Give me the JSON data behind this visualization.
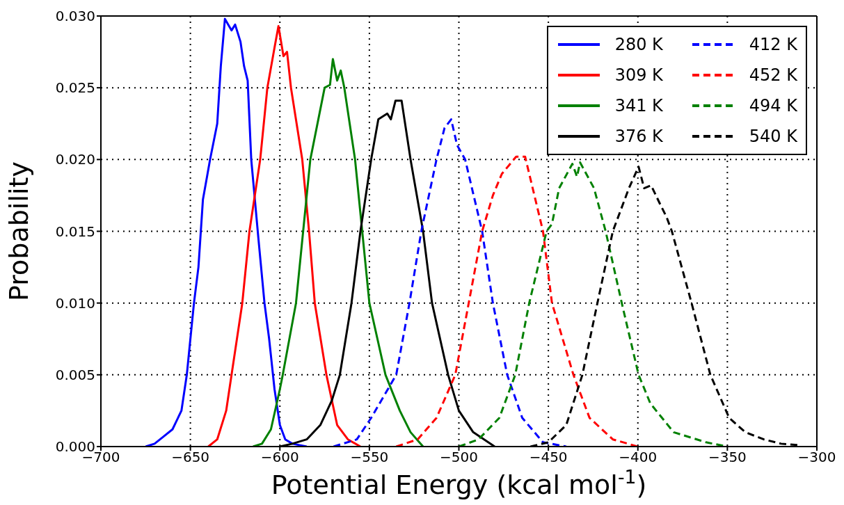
{
  "chart_data": {
    "type": "line",
    "xlabel": "Potential Energy (kcal mol$^{-1}$)",
    "ylabel": "Probability",
    "xlim": [
      -700,
      -300
    ],
    "xticks": [
      {
        "value": -700,
        "label": "−700"
      },
      {
        "value": -650,
        "label": "−650"
      },
      {
        "value": -600,
        "label": "−600"
      },
      {
        "value": -550,
        "label": "−550"
      },
      {
        "value": -500,
        "label": "−500"
      },
      {
        "value": -450,
        "label": "−450"
      },
      {
        "value": -400,
        "label": "−400"
      },
      {
        "value": -350,
        "label": "−350"
      },
      {
        "value": -300,
        "label": "−300"
      }
    ],
    "ylim": [
      0,
      0.03
    ],
    "yticks": [
      {
        "value": 0,
        "label": "0.000"
      },
      {
        "value": 0.005,
        "label": "0.005"
      },
      {
        "value": 0.01,
        "label": "0.010"
      },
      {
        "value": 0.015,
        "label": "0.015"
      },
      {
        "value": 0.02,
        "label": "0.020"
      },
      {
        "value": 0.025,
        "label": "0.025"
      },
      {
        "value": 0.03,
        "label": "0.030"
      }
    ],
    "grid": true,
    "legend": "top right",
    "marker": "none",
    "series": [
      {
        "name": "280 K",
        "color": "#0000ff",
        "line_style": "solid",
        "x": [
          -675,
          -670,
          -665,
          -660,
          -655,
          -652,
          -648,
          -645.5,
          -643,
          -639,
          -635,
          -633,
          -630.7,
          -627,
          -625,
          -622,
          -620,
          -618,
          -616,
          -612,
          -608.6,
          -606,
          -603,
          -600,
          -597,
          -593,
          -585
        ],
        "values": [
          0,
          0.0002,
          0.0007,
          0.0012,
          0.0025,
          0.005,
          0.01,
          0.0125,
          0.0172,
          0.02,
          0.0225,
          0.0265,
          0.0298,
          0.029,
          0.0294,
          0.0282,
          0.0265,
          0.0255,
          0.02,
          0.0145,
          0.01,
          0.0075,
          0.004,
          0.0015,
          0.0005,
          0.0002,
          0
        ]
      },
      {
        "name": "309 K",
        "color": "#ff0000",
        "line_style": "solid",
        "x": [
          -640,
          -635,
          -630,
          -627,
          -621,
          -617,
          -611,
          -607,
          -603,
          -600.8,
          -598,
          -596,
          -593.8,
          -587.5,
          -583.7,
          -580.5,
          -574,
          -568,
          -562,
          -555
        ],
        "values": [
          0,
          0.0005,
          0.0025,
          0.005,
          0.01,
          0.015,
          0.02,
          0.025,
          0.0278,
          0.0293,
          0.0272,
          0.0275,
          0.025,
          0.02,
          0.015,
          0.01,
          0.005,
          0.0015,
          0.0005,
          0
        ]
      },
      {
        "name": "341 K",
        "color": "#008000",
        "line_style": "solid",
        "x": [
          -615,
          -610,
          -605,
          -600,
          -598.4,
          -591,
          -587,
          -583,
          -575,
          -572,
          -570.4,
          -568,
          -566,
          -564,
          -558,
          -554,
          -550,
          -541,
          -533,
          -527,
          -520
        ],
        "values": [
          0,
          0.0002,
          0.0012,
          0.004,
          0.005,
          0.01,
          0.015,
          0.02,
          0.025,
          0.0252,
          0.027,
          0.0255,
          0.0262,
          0.025,
          0.02,
          0.015,
          0.01,
          0.005,
          0.0025,
          0.001,
          0
        ]
      },
      {
        "name": "376 K",
        "color": "#000000",
        "line_style": "solid",
        "x": [
          -600,
          -593,
          -585,
          -577.4,
          -571,
          -566.5,
          -560,
          -555,
          -549,
          -545,
          -540,
          -538,
          -535.4,
          -532,
          -527,
          -520,
          -515,
          -506,
          -500,
          -492,
          -480
        ],
        "values": [
          0,
          0.0002,
          0.0005,
          0.0015,
          0.0032,
          0.005,
          0.01,
          0.015,
          0.02,
          0.0228,
          0.0232,
          0.0228,
          0.0241,
          0.0241,
          0.02,
          0.015,
          0.01,
          0.005,
          0.0025,
          0.001,
          0
        ]
      },
      {
        "name": "412 K",
        "color": "#0000ff",
        "line_style": "dashed",
        "x": [
          -570,
          -557,
          -549,
          -535,
          -527.6,
          -521,
          -512.5,
          -508,
          -504.3,
          -501,
          -496.5,
          -487,
          -481,
          -473,
          -464.6,
          -453,
          -440
        ],
        "values": [
          0,
          0.0005,
          0.002,
          0.005,
          0.01,
          0.015,
          0.02,
          0.0222,
          0.0228,
          0.021,
          0.02,
          0.015,
          0.01,
          0.005,
          0.002,
          0.0003,
          0
        ]
      },
      {
        "name": "452 K",
        "color": "#ff0000",
        "line_style": "dashed",
        "x": [
          -535,
          -523,
          -512.5,
          -502,
          -494.5,
          -487,
          -481,
          -476,
          -468,
          -463,
          -453,
          -448,
          -436,
          -427,
          -414,
          -400
        ],
        "values": [
          0,
          0.0005,
          0.002,
          0.005,
          0.01,
          0.015,
          0.0175,
          0.019,
          0.0202,
          0.0202,
          0.015,
          0.01,
          0.005,
          0.002,
          0.0005,
          0
        ]
      },
      {
        "name": "494 K",
        "color": "#008000",
        "line_style": "dashed",
        "x": [
          -500,
          -489,
          -477.4,
          -468.5,
          -460.7,
          -451,
          -448,
          -444,
          -436.6,
          -434,
          -432.3,
          -424.5,
          -418,
          -409,
          -399.6,
          -393,
          -380,
          -362,
          -350
        ],
        "values": [
          0,
          0.0005,
          0.002,
          0.005,
          0.01,
          0.015,
          0.0155,
          0.018,
          0.0197,
          0.0188,
          0.0198,
          0.018,
          0.015,
          0.01,
          0.005,
          0.003,
          0.001,
          0.0003,
          0
        ]
      },
      {
        "name": "540 K",
        "color": "#000000",
        "line_style": "dashed",
        "x": [
          -460,
          -450,
          -440,
          -431,
          -422.6,
          -414,
          -405,
          -399.6,
          -396.5,
          -392.6,
          -388,
          -384,
          -381,
          -370,
          -359.5,
          -349,
          -340,
          -329.6,
          -320,
          -310
        ],
        "values": [
          0,
          0.0003,
          0.0015,
          0.005,
          0.01,
          0.015,
          0.018,
          0.0195,
          0.018,
          0.0182,
          0.017,
          0.016,
          0.015,
          0.01,
          0.005,
          0.002,
          0.001,
          0.0005,
          0.0002,
          0.0001
        ]
      }
    ]
  }
}
